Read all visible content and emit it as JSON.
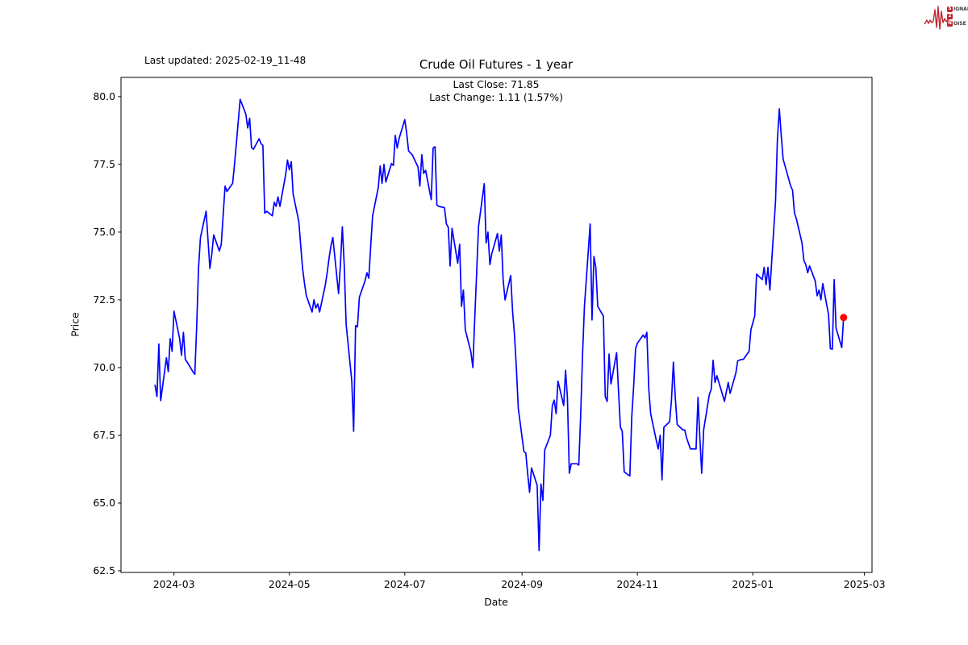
{
  "header": {
    "last_updated": "Last updated: 2025-02-19_11-48",
    "logo": {
      "name": "signal-2-noise-logo",
      "accent_color": "#c1272d",
      "row1_box": "S",
      "row1_rest": "IGNAL",
      "row2_box": "2",
      "row2_rest": "",
      "row3_box": "N",
      "row3_rest": "OISE"
    }
  },
  "chart_data": {
    "type": "line",
    "title": "Crude Oil Futures - 1 year",
    "subtitle_line1": "Last Close: 71.85",
    "subtitle_line2": "Last Change: 1.11 (1.57%)",
    "xlabel": "Date",
    "ylabel": "Price",
    "last_close": 71.85,
    "last_change": 1.11,
    "last_change_pct": "1.57%",
    "line_color": "#0000ff",
    "marker_color": "#ff0000",
    "grid": false,
    "legend": "none",
    "x_ticks": [
      "2024-03",
      "2024-05",
      "2024-07",
      "2024-09",
      "2024-11",
      "2025-01",
      "2025-03"
    ],
    "y_ticks": [
      "62.5",
      "65.0",
      "67.5",
      "70.0",
      "72.5",
      "75.0",
      "77.5",
      "80.0"
    ],
    "xlim": [
      "2024-02-02",
      "2025-03-05"
    ],
    "ylim": [
      62.44,
      80.71
    ],
    "series": [
      {
        "name": "Crude Oil Futures close",
        "points": [
          [
            "2024-02-20",
            69.35
          ],
          [
            "2024-02-21",
            68.93
          ],
          [
            "2024-02-22",
            70.87
          ],
          [
            "2024-02-23",
            68.78
          ],
          [
            "2024-02-26",
            70.36
          ],
          [
            "2024-02-27",
            69.85
          ],
          [
            "2024-02-28",
            71.07
          ],
          [
            "2024-02-29",
            70.6
          ],
          [
            "2024-03-01",
            72.08
          ],
          [
            "2024-03-04",
            71.07
          ],
          [
            "2024-03-05",
            70.45
          ],
          [
            "2024-03-06",
            71.3
          ],
          [
            "2024-03-07",
            70.3
          ],
          [
            "2024-03-08",
            70.2
          ],
          [
            "2024-03-11",
            69.85
          ],
          [
            "2024-03-12",
            69.75
          ],
          [
            "2024-03-13",
            71.5
          ],
          [
            "2024-03-14",
            73.66
          ],
          [
            "2024-03-15",
            74.8
          ],
          [
            "2024-03-18",
            75.77
          ],
          [
            "2024-03-19",
            74.7
          ],
          [
            "2024-03-20",
            73.66
          ],
          [
            "2024-03-21",
            74.2
          ],
          [
            "2024-03-22",
            74.9
          ],
          [
            "2024-03-25",
            74.3
          ],
          [
            "2024-03-26",
            74.55
          ],
          [
            "2024-03-27",
            75.6
          ],
          [
            "2024-03-28",
            76.7
          ],
          [
            "2024-03-29",
            76.5
          ],
          [
            "2024-04-01",
            76.8
          ],
          [
            "2024-04-02",
            77.5
          ],
          [
            "2024-04-03",
            78.3
          ],
          [
            "2024-04-04",
            79.1
          ],
          [
            "2024-04-05",
            79.9
          ],
          [
            "2024-04-08",
            79.35
          ],
          [
            "2024-04-09",
            78.84
          ],
          [
            "2024-04-10",
            79.2
          ],
          [
            "2024-04-11",
            78.12
          ],
          [
            "2024-04-12",
            78.06
          ],
          [
            "2024-04-15",
            78.45
          ],
          [
            "2024-04-16",
            78.27
          ],
          [
            "2024-04-17",
            78.2
          ],
          [
            "2024-04-18",
            75.7
          ],
          [
            "2024-04-19",
            75.77
          ],
          [
            "2024-04-22",
            75.6
          ],
          [
            "2024-04-23",
            76.1
          ],
          [
            "2024-04-24",
            75.95
          ],
          [
            "2024-04-25",
            76.3
          ],
          [
            "2024-04-26",
            75.95
          ],
          [
            "2024-04-29",
            77.1
          ],
          [
            "2024-04-30",
            77.66
          ],
          [
            "2024-05-01",
            77.3
          ],
          [
            "2024-05-02",
            77.6
          ],
          [
            "2024-05-03",
            76.4
          ],
          [
            "2024-05-06",
            75.4
          ],
          [
            "2024-05-07",
            74.5
          ],
          [
            "2024-05-08",
            73.66
          ],
          [
            "2024-05-09",
            73.1
          ],
          [
            "2024-05-10",
            72.65
          ],
          [
            "2024-05-13",
            72.05
          ],
          [
            "2024-05-14",
            72.5
          ],
          [
            "2024-05-15",
            72.2
          ],
          [
            "2024-05-16",
            72.35
          ],
          [
            "2024-05-17",
            72.05
          ],
          [
            "2024-05-20",
            73.05
          ],
          [
            "2024-05-21",
            73.5
          ],
          [
            "2024-05-22",
            74.05
          ],
          [
            "2024-05-23",
            74.5
          ],
          [
            "2024-05-24",
            74.8
          ],
          [
            "2024-05-27",
            72.73
          ],
          [
            "2024-05-28",
            73.8
          ],
          [
            "2024-05-29",
            75.2
          ],
          [
            "2024-05-30",
            73.8
          ],
          [
            "2024-05-31",
            71.6
          ],
          [
            "2024-06-03",
            69.5
          ],
          [
            "2024-06-04",
            67.65
          ],
          [
            "2024-06-05",
            71.55
          ],
          [
            "2024-06-06",
            71.5
          ],
          [
            "2024-06-07",
            72.6
          ],
          [
            "2024-06-10",
            73.2
          ],
          [
            "2024-06-11",
            73.5
          ],
          [
            "2024-06-12",
            73.3
          ],
          [
            "2024-06-13",
            74.5
          ],
          [
            "2024-06-14",
            75.6
          ],
          [
            "2024-06-17",
            76.64
          ],
          [
            "2024-06-18",
            77.44
          ],
          [
            "2024-06-19",
            76.8
          ],
          [
            "2024-06-20",
            77.5
          ],
          [
            "2024-06-21",
            76.85
          ],
          [
            "2024-06-24",
            77.53
          ],
          [
            "2024-06-25",
            77.46
          ],
          [
            "2024-06-26",
            78.57
          ],
          [
            "2024-06-27",
            78.1
          ],
          [
            "2024-06-28",
            78.45
          ],
          [
            "2024-07-01",
            79.15
          ],
          [
            "2024-07-02",
            78.66
          ],
          [
            "2024-07-03",
            78.0
          ],
          [
            "2024-07-05",
            77.85
          ],
          [
            "2024-07-08",
            77.4
          ],
          [
            "2024-07-09",
            76.7
          ],
          [
            "2024-07-10",
            77.86
          ],
          [
            "2024-07-11",
            77.17
          ],
          [
            "2024-07-12",
            77.28
          ],
          [
            "2024-07-15",
            76.2
          ],
          [
            "2024-07-16",
            78.1
          ],
          [
            "2024-07-17",
            78.15
          ],
          [
            "2024-07-18",
            76.0
          ],
          [
            "2024-07-19",
            75.95
          ],
          [
            "2024-07-22",
            75.9
          ],
          [
            "2024-07-23",
            75.3
          ],
          [
            "2024-07-24",
            75.18
          ],
          [
            "2024-07-25",
            73.75
          ],
          [
            "2024-07-26",
            75.14
          ],
          [
            "2024-07-29",
            73.85
          ],
          [
            "2024-07-30",
            74.55
          ],
          [
            "2024-07-31",
            72.26
          ],
          [
            "2024-08-01",
            72.86
          ],
          [
            "2024-08-02",
            71.4
          ],
          [
            "2024-08-05",
            70.57
          ],
          [
            "2024-08-06",
            70.0
          ],
          [
            "2024-08-07",
            71.8
          ],
          [
            "2024-08-08",
            73.5
          ],
          [
            "2024-08-09",
            75.2
          ],
          [
            "2024-08-12",
            76.79
          ],
          [
            "2024-08-13",
            74.6
          ],
          [
            "2024-08-14",
            75.0
          ],
          [
            "2024-08-15",
            73.8
          ],
          [
            "2024-08-16",
            74.2
          ],
          [
            "2024-08-19",
            74.95
          ],
          [
            "2024-08-20",
            74.3
          ],
          [
            "2024-08-21",
            74.9
          ],
          [
            "2024-08-22",
            73.25
          ],
          [
            "2024-08-23",
            72.5
          ],
          [
            "2024-08-26",
            73.4
          ],
          [
            "2024-08-27",
            72.1
          ],
          [
            "2024-08-28",
            71.2
          ],
          [
            "2024-08-29",
            70.0
          ],
          [
            "2024-08-30",
            68.5
          ],
          [
            "2024-09-02",
            66.9
          ],
          [
            "2024-09-03",
            66.85
          ],
          [
            "2024-09-04",
            66.07
          ],
          [
            "2024-09-05",
            65.4
          ],
          [
            "2024-09-06",
            66.3
          ],
          [
            "2024-09-09",
            65.65
          ],
          [
            "2024-09-10",
            63.25
          ],
          [
            "2024-09-11",
            65.7
          ],
          [
            "2024-09-12",
            65.1
          ],
          [
            "2024-09-13",
            66.96
          ],
          [
            "2024-09-16",
            67.5
          ],
          [
            "2024-09-17",
            68.6
          ],
          [
            "2024-09-18",
            68.8
          ],
          [
            "2024-09-19",
            68.3
          ],
          [
            "2024-09-20",
            69.5
          ],
          [
            "2024-09-23",
            68.6
          ],
          [
            "2024-09-24",
            69.9
          ],
          [
            "2024-09-25",
            68.9
          ],
          [
            "2024-09-26",
            66.1
          ],
          [
            "2024-09-27",
            66.45
          ],
          [
            "2024-09-30",
            66.45
          ],
          [
            "2024-10-01",
            66.4
          ],
          [
            "2024-10-02",
            68.3
          ],
          [
            "2024-10-03",
            70.5
          ],
          [
            "2024-10-04",
            72.26
          ],
          [
            "2024-10-07",
            75.3
          ],
          [
            "2024-10-08",
            71.76
          ],
          [
            "2024-10-09",
            74.1
          ],
          [
            "2024-10-10",
            73.7
          ],
          [
            "2024-10-11",
            72.26
          ],
          [
            "2024-10-14",
            71.9
          ],
          [
            "2024-10-15",
            68.93
          ],
          [
            "2024-10-16",
            68.75
          ],
          [
            "2024-10-17",
            70.5
          ],
          [
            "2024-10-18",
            69.4
          ],
          [
            "2024-10-21",
            70.55
          ],
          [
            "2024-10-22",
            69.1
          ],
          [
            "2024-10-23",
            67.8
          ],
          [
            "2024-10-24",
            67.65
          ],
          [
            "2024-10-25",
            66.15
          ],
          [
            "2024-10-28",
            66.0
          ],
          [
            "2024-10-29",
            68.2
          ],
          [
            "2024-10-30",
            69.3
          ],
          [
            "2024-10-31",
            70.7
          ],
          [
            "2024-11-01",
            70.9
          ],
          [
            "2024-11-04",
            71.2
          ],
          [
            "2024-11-05",
            71.1
          ],
          [
            "2024-11-06",
            71.3
          ],
          [
            "2024-11-07",
            69.2
          ],
          [
            "2024-11-08",
            68.3
          ],
          [
            "2024-11-11",
            67.3
          ],
          [
            "2024-11-12",
            67.0
          ],
          [
            "2024-11-13",
            67.5
          ],
          [
            "2024-11-14",
            65.86
          ],
          [
            "2024-11-15",
            67.8
          ],
          [
            "2024-11-18",
            68.0
          ],
          [
            "2024-11-19",
            68.8
          ],
          [
            "2024-11-20",
            70.2
          ],
          [
            "2024-11-21",
            68.9
          ],
          [
            "2024-11-22",
            67.9
          ],
          [
            "2024-11-25",
            67.7
          ],
          [
            "2024-11-26",
            67.7
          ],
          [
            "2024-11-27",
            67.4
          ],
          [
            "2024-11-29",
            67.0
          ],
          [
            "2024-12-02",
            67.0
          ],
          [
            "2024-12-03",
            68.9
          ],
          [
            "2024-12-04",
            67.4
          ],
          [
            "2024-12-05",
            66.1
          ],
          [
            "2024-12-06",
            67.7
          ],
          [
            "2024-12-09",
            69.0
          ],
          [
            "2024-12-10",
            69.2
          ],
          [
            "2024-12-11",
            70.27
          ],
          [
            "2024-12-12",
            69.45
          ],
          [
            "2024-12-13",
            69.7
          ],
          [
            "2024-12-16",
            69.0
          ],
          [
            "2024-12-17",
            68.75
          ],
          [
            "2024-12-18",
            69.1
          ],
          [
            "2024-12-19",
            69.45
          ],
          [
            "2024-12-20",
            69.05
          ],
          [
            "2024-12-23",
            69.8
          ],
          [
            "2024-12-24",
            70.25
          ],
          [
            "2024-12-26",
            70.3
          ],
          [
            "2024-12-27",
            70.3
          ],
          [
            "2024-12-30",
            70.6
          ],
          [
            "2024-12-31",
            71.4
          ],
          [
            "2025-01-02",
            71.9
          ],
          [
            "2025-01-03",
            73.45
          ],
          [
            "2025-01-06",
            73.25
          ],
          [
            "2025-01-07",
            73.7
          ],
          [
            "2025-01-08",
            73.06
          ],
          [
            "2025-01-09",
            73.7
          ],
          [
            "2025-01-10",
            72.86
          ],
          [
            "2025-01-13",
            76.13
          ],
          [
            "2025-01-14",
            78.4
          ],
          [
            "2025-01-15",
            79.55
          ],
          [
            "2025-01-16",
            78.6
          ],
          [
            "2025-01-17",
            77.7
          ],
          [
            "2025-01-21",
            76.7
          ],
          [
            "2025-01-22",
            76.55
          ],
          [
            "2025-01-23",
            75.7
          ],
          [
            "2025-01-24",
            75.5
          ],
          [
            "2025-01-27",
            74.6
          ],
          [
            "2025-01-28",
            73.95
          ],
          [
            "2025-01-29",
            73.8
          ],
          [
            "2025-01-30",
            73.5
          ],
          [
            "2025-01-31",
            73.75
          ],
          [
            "2025-02-03",
            73.2
          ],
          [
            "2025-02-04",
            72.65
          ],
          [
            "2025-02-05",
            72.86
          ],
          [
            "2025-02-06",
            72.5
          ],
          [
            "2025-02-07",
            73.1
          ],
          [
            "2025-02-10",
            71.96
          ],
          [
            "2025-02-11",
            70.7
          ],
          [
            "2025-02-12",
            70.68
          ],
          [
            "2025-02-13",
            73.25
          ],
          [
            "2025-02-14",
            71.46
          ],
          [
            "2025-02-17",
            70.74
          ],
          [
            "2025-02-18",
            71.85
          ]
        ]
      }
    ]
  }
}
